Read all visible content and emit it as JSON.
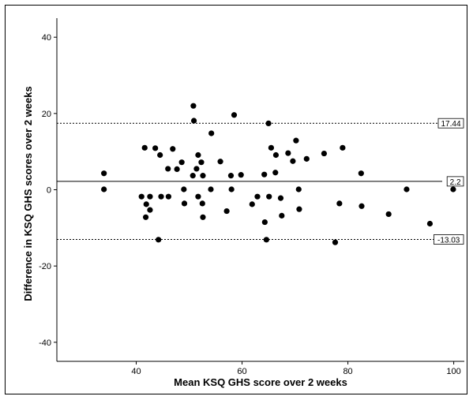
{
  "chart_data": {
    "type": "scatter",
    "title": "",
    "xlabel": "Mean KSQ GHS score over 2 weeks",
    "ylabel": "Difference in KSQ GHS scores over 2 weeks",
    "xlim": [
      25,
      102
    ],
    "ylim": [
      -45,
      45
    ],
    "x_ticks": [
      40,
      60,
      80,
      100
    ],
    "y_ticks": [
      -40,
      -20,
      0,
      20,
      40
    ],
    "grid": false,
    "reference_lines": [
      {
        "value": 17.44,
        "label": "17.44",
        "style": "dashed"
      },
      {
        "value": 2.2,
        "label": "2.2",
        "style": "solid"
      },
      {
        "value": -13.03,
        "label": "-13.03",
        "style": "dashed"
      }
    ],
    "points": [
      [
        33.9,
        4.3
      ],
      [
        33.9,
        0.1
      ],
      [
        41.0,
        -1.8
      ],
      [
        41.6,
        11.0
      ],
      [
        41.8,
        -7.2
      ],
      [
        41.9,
        -3.8
      ],
      [
        42.6,
        -5.3
      ],
      [
        42.6,
        -1.8
      ],
      [
        43.6,
        10.9
      ],
      [
        44.2,
        -13.1
      ],
      [
        44.5,
        9.1
      ],
      [
        44.7,
        -1.8
      ],
      [
        46.0,
        5.5
      ],
      [
        46.1,
        -1.8
      ],
      [
        46.9,
        10.7
      ],
      [
        47.7,
        5.4
      ],
      [
        48.6,
        7.2
      ],
      [
        49.0,
        0.1
      ],
      [
        49.1,
        -3.6
      ],
      [
        50.7,
        3.7
      ],
      [
        50.8,
        22.0
      ],
      [
        50.9,
        18.1
      ],
      [
        51.4,
        5.5
      ],
      [
        51.7,
        9.1
      ],
      [
        51.7,
        -1.8
      ],
      [
        52.3,
        7.2
      ],
      [
        52.5,
        -3.6
      ],
      [
        52.6,
        3.7
      ],
      [
        52.6,
        -7.2
      ],
      [
        54.1,
        0.1
      ],
      [
        54.2,
        14.8
      ],
      [
        55.9,
        7.4
      ],
      [
        57.1,
        -5.6
      ],
      [
        57.9,
        3.7
      ],
      [
        58.0,
        0.1
      ],
      [
        58.5,
        19.6
      ],
      [
        59.8,
        3.9
      ],
      [
        61.9,
        -3.8
      ],
      [
        62.9,
        -1.8
      ],
      [
        64.2,
        4.0
      ],
      [
        64.3,
        -8.5
      ],
      [
        64.6,
        -13.1
      ],
      [
        65.0,
        17.4
      ],
      [
        65.1,
        -1.8
      ],
      [
        65.5,
        11.0
      ],
      [
        66.3,
        4.5
      ],
      [
        66.4,
        9.1
      ],
      [
        67.3,
        -2.2
      ],
      [
        67.5,
        -6.8
      ],
      [
        68.7,
        9.6
      ],
      [
        69.6,
        7.5
      ],
      [
        70.2,
        12.9
      ],
      [
        70.7,
        0.1
      ],
      [
        70.8,
        -5.1
      ],
      [
        72.2,
        8.1
      ],
      [
        75.5,
        9.5
      ],
      [
        77.6,
        -13.8
      ],
      [
        78.4,
        -3.6
      ],
      [
        79.0,
        11.0
      ],
      [
        82.5,
        4.3
      ],
      [
        82.6,
        -4.3
      ],
      [
        87.7,
        -6.4
      ],
      [
        91.1,
        0.1
      ],
      [
        95.5,
        -8.9
      ],
      [
        99.9,
        0.1
      ]
    ]
  }
}
